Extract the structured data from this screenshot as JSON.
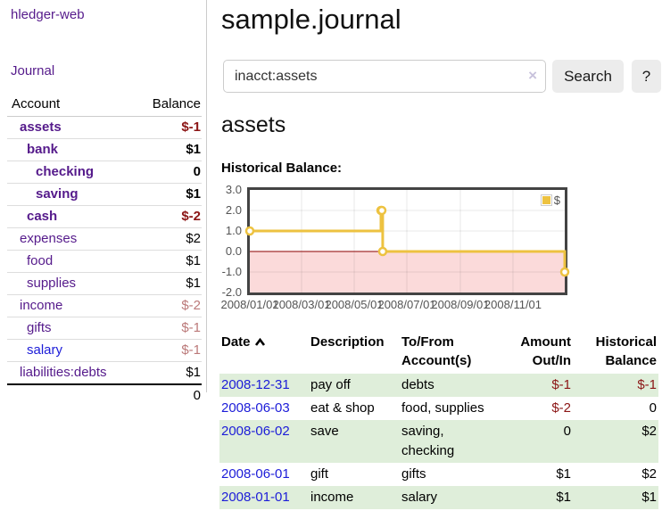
{
  "app_title": "hledger-web",
  "sidebar": {
    "journal_link": "Journal",
    "table": {
      "account_header": "Account",
      "balance_header": "Balance",
      "rows": [
        {
          "name": "assets",
          "balance": "$-1",
          "depth": 1,
          "in_filter": true,
          "balance_tone": "neg-strong",
          "link_tone": "visited"
        },
        {
          "name": "bank",
          "balance": "$1",
          "depth": 2,
          "in_filter": true,
          "balance_tone": "pos",
          "link_tone": "visited"
        },
        {
          "name": "checking",
          "balance": "0",
          "depth": 3,
          "in_filter": true,
          "balance_tone": "pos",
          "link_tone": "visited"
        },
        {
          "name": "saving",
          "balance": "$1",
          "depth": 3,
          "in_filter": true,
          "balance_tone": "pos",
          "link_tone": "visited"
        },
        {
          "name": "cash",
          "balance": "$-2",
          "depth": 2,
          "in_filter": true,
          "balance_tone": "neg-strong",
          "link_tone": "visited"
        },
        {
          "name": "expenses",
          "balance": "$2",
          "depth": 1,
          "in_filter": false,
          "balance_tone": "pos",
          "link_tone": "visited"
        },
        {
          "name": "food",
          "balance": "$1",
          "depth": 2,
          "in_filter": false,
          "balance_tone": "pos",
          "link_tone": "visited"
        },
        {
          "name": "supplies",
          "balance": "$1",
          "depth": 2,
          "in_filter": false,
          "balance_tone": "pos",
          "link_tone": "visited"
        },
        {
          "name": "income",
          "balance": "$-2",
          "depth": 1,
          "in_filter": false,
          "balance_tone": "neg-soft",
          "link_tone": "visited"
        },
        {
          "name": "gifts",
          "balance": "$-1",
          "depth": 2,
          "in_filter": false,
          "balance_tone": "neg-soft",
          "link_tone": "visited"
        },
        {
          "name": "salary",
          "balance": "$-1",
          "depth": 2,
          "in_filter": false,
          "balance_tone": "neg-soft",
          "link_tone": "unvisited"
        },
        {
          "name": "liabilities:debts",
          "balance": "$1",
          "depth": 1,
          "in_filter": false,
          "balance_tone": "pos",
          "link_tone": "visited"
        }
      ],
      "total": "0"
    }
  },
  "main": {
    "title": "sample.journal",
    "search": {
      "value": "inacct:assets",
      "clear_icon": "×",
      "search_button": "Search",
      "help_button": "?"
    },
    "account_heading": "assets",
    "section_label": "Historical Balance:"
  },
  "chart_data": {
    "type": "line",
    "step": true,
    "title": "Historical Balance",
    "series": [
      {
        "name": "$",
        "color": "#edc240",
        "points": [
          {
            "x": "2008-01-01",
            "y": 1
          },
          {
            "x": "2008-06-01",
            "y": 2
          },
          {
            "x": "2008-06-02",
            "y": 2
          },
          {
            "x": "2008-06-03",
            "y": 0
          },
          {
            "x": "2008-12-31",
            "y": -1
          }
        ]
      }
    ],
    "x_ticks": [
      "2008/01/01",
      "2008/03/01",
      "2008/05/01",
      "2008/07/01",
      "2008/09/01",
      "2008/11/01"
    ],
    "y_ticks": [
      3.0,
      2.0,
      1.0,
      0.0,
      -1.0,
      -2.0
    ],
    "xlim": [
      "2008-01-01",
      "2008-12-31"
    ],
    "ylim": [
      -2,
      3
    ],
    "grid": true,
    "legend": {
      "label": "$",
      "position": "top-right"
    },
    "negative_region": true
  },
  "register": {
    "headers": {
      "date": "Date",
      "description": "Description",
      "accounts": "To/From Account(s)",
      "amount": "Amount Out/In",
      "balance": "Historical Balance"
    },
    "sort_icon": "chevron-up",
    "rows": [
      {
        "date": "2008-12-31",
        "description": "pay off",
        "accounts": "debts",
        "amount": "$-1",
        "amount_neg": true,
        "balance": "$-1",
        "balance_neg": true
      },
      {
        "date": "2008-06-03",
        "description": "eat & shop",
        "accounts": "food, supplies",
        "amount": "$-2",
        "amount_neg": true,
        "balance": "0",
        "balance_neg": false
      },
      {
        "date": "2008-06-02",
        "description": "save",
        "accounts": "saving, checking",
        "amount": "0",
        "amount_neg": false,
        "balance": "$2",
        "balance_neg": false
      },
      {
        "date": "2008-06-01",
        "description": "gift",
        "accounts": "gifts",
        "amount": "$1",
        "amount_neg": false,
        "balance": "$2",
        "balance_neg": false
      },
      {
        "date": "2008-01-01",
        "description": "income",
        "accounts": "salary",
        "amount": "$1",
        "amount_neg": false,
        "balance": "$1",
        "balance_neg": false
      }
    ]
  },
  "colors": {
    "link_visited": "#551A8B",
    "link_unvisited": "#1c1cd8",
    "negative_strong": "#8b1515",
    "negative_soft": "#bb7979",
    "row_stripe_green": "#dfeeda",
    "chart_series_gold": "#edc240",
    "chart_negative_bg": "#fbdada",
    "chart_zero_line": "#8b0000",
    "chart_axis_text": "#545454",
    "chart_border": "#434343",
    "chart_grid": "rgba(0,0,0,0.09)"
  }
}
